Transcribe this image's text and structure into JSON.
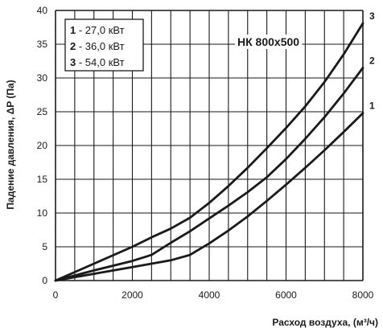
{
  "chart_data": {
    "type": "line",
    "annotation": "НК 800x500",
    "xlabel": "Расход воздуха, (м³/ч)",
    "ylabel": "Падение давления, ΔP (Па)",
    "xlim": [
      0,
      8000
    ],
    "ylim": [
      0,
      40
    ],
    "x_ticks": [
      "0",
      "2000",
      "4000",
      "6000",
      "8000"
    ],
    "y_ticks": [
      "0",
      "5",
      "10",
      "15",
      "20",
      "25",
      "30",
      "35",
      "40"
    ],
    "grid": true,
    "legend_position": "top-left",
    "legend": [
      {
        "num": "1",
        "text": "- 27,0  кВт"
      },
      {
        "num": "2",
        "text": "- 36,0  кВт"
      },
      {
        "num": "3",
        "text": "- 54,0  кВт"
      }
    ],
    "series": [
      {
        "name": "1",
        "points": [
          [
            0,
            0
          ],
          [
            1000,
            1.0
          ],
          [
            2000,
            2.0
          ],
          [
            3000,
            3.0
          ],
          [
            3500,
            3.8
          ],
          [
            4000,
            5.5
          ],
          [
            4500,
            7.4
          ],
          [
            5000,
            9.5
          ],
          [
            5500,
            11.8
          ],
          [
            6000,
            14.2
          ],
          [
            6500,
            16.7
          ],
          [
            7000,
            19.3
          ],
          [
            7500,
            22.0
          ],
          [
            8000,
            24.8
          ]
        ]
      },
      {
        "name": "2",
        "points": [
          [
            0,
            0
          ],
          [
            1000,
            1.5
          ],
          [
            2000,
            2.9
          ],
          [
            2500,
            3.8
          ],
          [
            3000,
            5.6
          ],
          [
            3500,
            7.3
          ],
          [
            4000,
            9.2
          ],
          [
            4500,
            11.1
          ],
          [
            5000,
            13.1
          ],
          [
            5500,
            15.3
          ],
          [
            6000,
            18.0
          ],
          [
            6500,
            21.0
          ],
          [
            7000,
            24.2
          ],
          [
            7500,
            27.7
          ],
          [
            8000,
            31.5
          ]
        ]
      },
      {
        "name": "3",
        "points": [
          [
            0,
            0
          ],
          [
            1000,
            2.5
          ],
          [
            2000,
            5.0
          ],
          [
            2500,
            6.4
          ],
          [
            3000,
            7.7
          ],
          [
            3500,
            9.3
          ],
          [
            4000,
            11.5
          ],
          [
            4500,
            14.0
          ],
          [
            5000,
            16.7
          ],
          [
            5500,
            19.6
          ],
          [
            6000,
            22.6
          ],
          [
            6500,
            25.8
          ],
          [
            7000,
            29.4
          ],
          [
            7500,
            33.5
          ],
          [
            8000,
            38.1
          ]
        ]
      }
    ],
    "curve_labels": [
      "1",
      "2",
      "3"
    ]
  }
}
